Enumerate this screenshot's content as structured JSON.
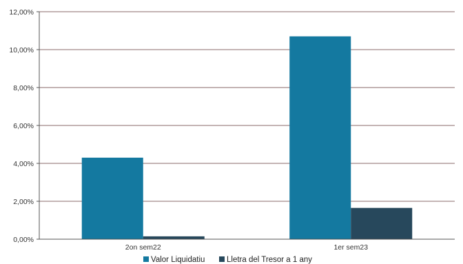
{
  "chart_data": {
    "type": "bar",
    "categories": [
      "2on sem22",
      "1er sem23"
    ],
    "series": [
      {
        "name": "Valor Liquidatiu",
        "values": [
          4.3,
          10.7
        ],
        "color": "#1479a0"
      },
      {
        "name": "Lletra del Tresor a 1 any",
        "values": [
          0.15,
          1.65
        ],
        "color": "#27485c"
      }
    ],
    "ylim": [
      0,
      12
    ],
    "y_ticks": [
      {
        "value": 0,
        "label": "0,00%"
      },
      {
        "value": 2,
        "label": "2,00%"
      },
      {
        "value": 4,
        "label": "4,00%"
      },
      {
        "value": 6,
        "label": "6,00%"
      },
      {
        "value": 8,
        "label": "8,00%"
      },
      {
        "value": 10,
        "label": "10,00%"
      },
      {
        "value": 12,
        "label": "12,00%"
      }
    ],
    "grid": true,
    "gridline_color": "#8a6a6a",
    "legend_position": "bottom"
  }
}
